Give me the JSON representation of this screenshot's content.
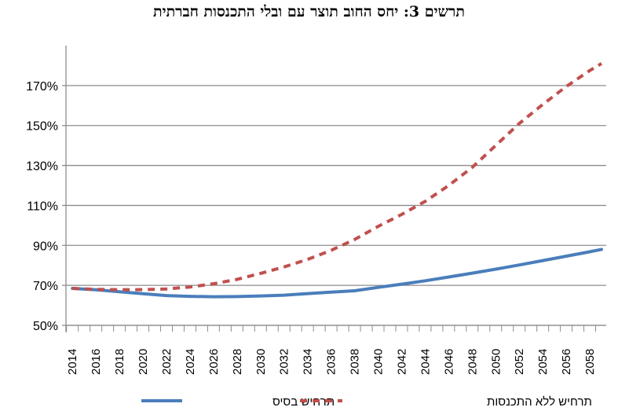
{
  "chart_data": {
    "type": "line",
    "title": "תרשים 3: יחס החוב תוצר עם ובלי התכנסות חברתית",
    "xlabel": "",
    "ylabel": "",
    "ylim": [
      50,
      190
    ],
    "yticks": [
      "50%",
      "70%",
      "90%",
      "110%",
      "130%",
      "150%",
      "170%"
    ],
    "xticks": [
      "2014",
      "2016",
      "2018",
      "2020",
      "2022",
      "2024",
      "2026",
      "2028",
      "2030",
      "2032",
      "2034",
      "2036",
      "2038",
      "2040",
      "2042",
      "2044",
      "2046",
      "2048",
      "2050",
      "2052",
      "2054",
      "2056",
      "2058"
    ],
    "grid": true,
    "legend": "bottom",
    "x": [
      2014,
      2016,
      2018,
      2020,
      2022,
      2024,
      2026,
      2028,
      2030,
      2032,
      2034,
      2036,
      2038,
      2040,
      2042,
      2044,
      2046,
      2048,
      2050,
      2052,
      2054,
      2056,
      2058,
      2059
    ],
    "series": [
      {
        "name": "תרחיש בסיס",
        "color": "#4a7ebb",
        "style": "solid",
        "values": [
          68.5,
          67.8,
          66.8,
          65.8,
          64.9,
          64.5,
          64.3,
          64.4,
          64.7,
          65.1,
          65.9,
          66.6,
          67.3,
          69.0,
          70.6,
          72.3,
          74.2,
          76.1,
          78.1,
          80.2,
          82.4,
          84.6,
          86.8,
          88.0
        ]
      },
      {
        "name": "תרחיש ללא התכנסות",
        "color": "#c0504d",
        "style": "dashed",
        "values": [
          68.5,
          68.0,
          67.8,
          67.9,
          68.2,
          69.2,
          70.8,
          73.0,
          76.0,
          79.2,
          83.0,
          87.5,
          93.0,
          99.5,
          105.5,
          112.0,
          120.0,
          129.0,
          140.0,
          151.0,
          160.5,
          169.5,
          177.5,
          181.0
        ]
      }
    ]
  }
}
